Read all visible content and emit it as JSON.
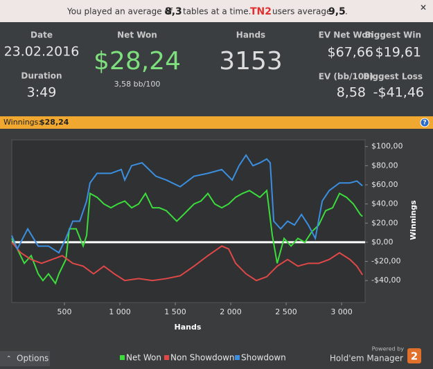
{
  "banner": {
    "prefix": "You played an average of",
    "tables": "8,3",
    "middle": "tables at a time.",
    "site": "TN2",
    "suffix": "users average",
    "site_average": "9,5",
    "end": "."
  },
  "stats": {
    "date_label": "Date",
    "date": "23.02.2016",
    "duration_label": "Duration",
    "duration": "3:49",
    "net_won_label": "Net Won",
    "net_won": "$28,24",
    "bb100": "3,58 bb/100",
    "hands_label": "Hands",
    "hands": "3153",
    "ev_net_won_label": "EV Net Won",
    "ev_net_won": "$67,66",
    "biggest_win_label": "Biggest Win",
    "biggest_win": "$19,61",
    "ev_bb100_label": "EV (bb/100)",
    "ev_bb100": "8,58",
    "biggest_loss_label": "Biggest Loss",
    "biggest_loss": "-$41,46"
  },
  "winnings_bar": {
    "label": "Winnings:",
    "value": "$28,24"
  },
  "chart_data": {
    "type": "line",
    "x_label": "Hands",
    "y_label": "Winnings",
    "xlim": [
      25,
      3212
    ],
    "ylim": [
      -63,
      107
    ],
    "xticks": [
      500,
      {
        "value": 1000,
        "label": "1 000"
      },
      {
        "value": 1500,
        "label": "1 500"
      },
      {
        "value": 2000,
        "label": "2 000"
      },
      {
        "value": 2500,
        "label": "2 500"
      },
      {
        "value": 3000,
        "label": "3 000"
      }
    ],
    "yticks": [
      {
        "value": -40,
        "label": "-$40,00"
      },
      {
        "value": -20,
        "label": "-$20,00"
      },
      {
        "value": 0,
        "label": "$0,00"
      },
      {
        "value": 20,
        "label": "$20,00"
      },
      {
        "value": 40,
        "label": "$40,00"
      },
      {
        "value": 60,
        "label": "$60,00"
      },
      {
        "value": 80,
        "label": "$80,00"
      },
      {
        "value": 100,
        "label": "$100,00"
      }
    ],
    "series": [
      {
        "name": "Net Won",
        "color": "#3ddc3d",
        "x": [
          25,
          75,
          138,
          200,
          263,
          306,
          356,
          419,
          450,
          513,
          544,
          606,
          669,
          700,
          731,
          794,
          856,
          919,
          981,
          1044,
          1106,
          1169,
          1231,
          1294,
          1356,
          1419,
          1513,
          1575,
          1669,
          1731,
          1794,
          1856,
          1919,
          1981,
          2044,
          2106,
          2169,
          2263,
          2325,
          2375,
          2419,
          2481,
          2544,
          2606,
          2669,
          2731,
          2794,
          2856,
          2919,
          2981,
          3044,
          3106,
          3169,
          3188
        ],
        "values": [
          4,
          -7,
          -22,
          -14,
          -33,
          -40,
          -33,
          -43,
          -33,
          -18,
          14,
          14,
          -4,
          7,
          51,
          47,
          40,
          36,
          40,
          43,
          36,
          40,
          51,
          36,
          36,
          33,
          22,
          29,
          40,
          43,
          51,
          40,
          36,
          40,
          47,
          51,
          54,
          47,
          54,
          7,
          -22,
          4,
          -4,
          4,
          0,
          11,
          18,
          33,
          36,
          51,
          47,
          40,
          29,
          27
        ]
      },
      {
        "name": "Non Showdown",
        "color": "#e04848",
        "x": [
          25,
          106,
          200,
          294,
          388,
          481,
          575,
          669,
          763,
          856,
          950,
          1044,
          1169,
          1294,
          1419,
          1544,
          1669,
          1794,
          1919,
          1981,
          2044,
          2138,
          2231,
          2325,
          2419,
          2513,
          2606,
          2700,
          2794,
          2888,
          2981,
          3075,
          3138,
          3188
        ],
        "values": [
          0,
          -11,
          -18,
          -22,
          -18,
          -14,
          -22,
          -25,
          -33,
          -25,
          -33,
          -40,
          -38,
          -40,
          -38,
          -35,
          -25,
          -14,
          -4,
          -7,
          -22,
          -33,
          -40,
          -36,
          -25,
          -18,
          -25,
          -22,
          -22,
          -18,
          -11,
          -18,
          -25,
          -34
        ]
      },
      {
        "name": "Showdown",
        "color": "#3c8fe0",
        "x": [
          25,
          75,
          169,
          263,
          356,
          450,
          513,
          575,
          638,
          700,
          731,
          794,
          919,
          1013,
          1044,
          1106,
          1200,
          1263,
          1325,
          1419,
          1544,
          1669,
          1794,
          1919,
          2013,
          2075,
          2138,
          2200,
          2263,
          2325,
          2356,
          2388,
          2450,
          2513,
          2575,
          2638,
          2700,
          2763,
          2825,
          2888,
          2981,
          3075,
          3138,
          3188
        ],
        "values": [
          7,
          -7,
          14,
          -4,
          -4,
          -11,
          4,
          22,
          22,
          43,
          62,
          72,
          72,
          76,
          65,
          80,
          83,
          76,
          69,
          65,
          58,
          69,
          72,
          76,
          65,
          80,
          91,
          80,
          83,
          87,
          83,
          22,
          14,
          22,
          18,
          29,
          18,
          4,
          43,
          54,
          62,
          62,
          64,
          59
        ]
      }
    ]
  },
  "footer": {
    "options": "Options",
    "powered_by": "Powered by",
    "brand": "Hold'em Manager",
    "badge": "2"
  }
}
